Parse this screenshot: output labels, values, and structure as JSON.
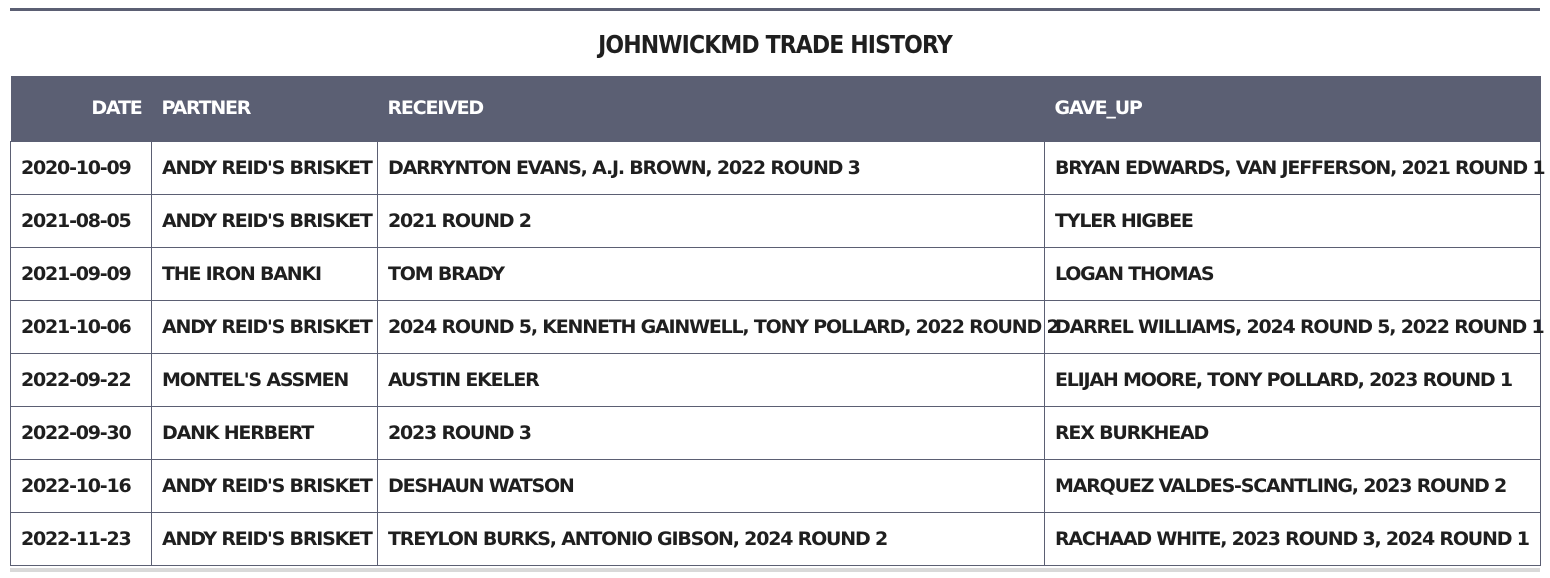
{
  "title": "JOHNWICKMD TRADE HISTORY",
  "table": {
    "headers": {
      "date": "DATE",
      "partner": "PARTNER",
      "received": "RECEIVED",
      "gave_up": "GAVE_UP"
    },
    "rows": [
      {
        "date": "2020-10-09",
        "partner": "ANDY REID'S BRISKET",
        "received": "DARRYNTON EVANS, A.J. BROWN, 2022 ROUND 3",
        "gave_up": "BRYAN EDWARDS, VAN JEFFERSON, 2021 ROUND 1"
      },
      {
        "date": "2021-08-05",
        "partner": "ANDY REID'S BRISKET",
        "received": "2021 ROUND 2",
        "gave_up": "TYLER HIGBEE"
      },
      {
        "date": "2021-09-09",
        "partner": "THE IRON BANKI",
        "received": "TOM BRADY",
        "gave_up": "LOGAN THOMAS"
      },
      {
        "date": "2021-10-06",
        "partner": "ANDY REID'S BRISKET",
        "received": "2024 ROUND 5, KENNETH GAINWELL, TONY POLLARD, 2022 ROUND 2",
        "gave_up": "DARREL WILLIAMS, 2024 ROUND 5, 2022 ROUND 1"
      },
      {
        "date": "2022-09-22",
        "partner": "MONTEL'S ASSMEN",
        "received": "AUSTIN EKELER",
        "gave_up": "ELIJAH MOORE, TONY POLLARD, 2023 ROUND 1"
      },
      {
        "date": "2022-09-30",
        "partner": "DANK HERBERT",
        "received": "2023 ROUND 3",
        "gave_up": "REX BURKHEAD"
      },
      {
        "date": "2022-10-16",
        "partner": "ANDY REID'S BRISKET",
        "received": "DESHAUN WATSON",
        "gave_up": "MARQUEZ VALDES-SCANTLING, 2023 ROUND 2"
      },
      {
        "date": "2022-11-23",
        "partner": "ANDY REID'S BRISKET",
        "received": "TREYLON BURKS, ANTONIO GIBSON, 2024 ROUND 2",
        "gave_up": "RACHAAD WHITE, 2023 ROUND 3, 2024 ROUND 1"
      }
    ]
  },
  "colors": {
    "header_bg": "#5b5f73",
    "header_text": "#ffffff",
    "cell_border": "#5b5f73",
    "cell_text": "#1f1f1f"
  }
}
